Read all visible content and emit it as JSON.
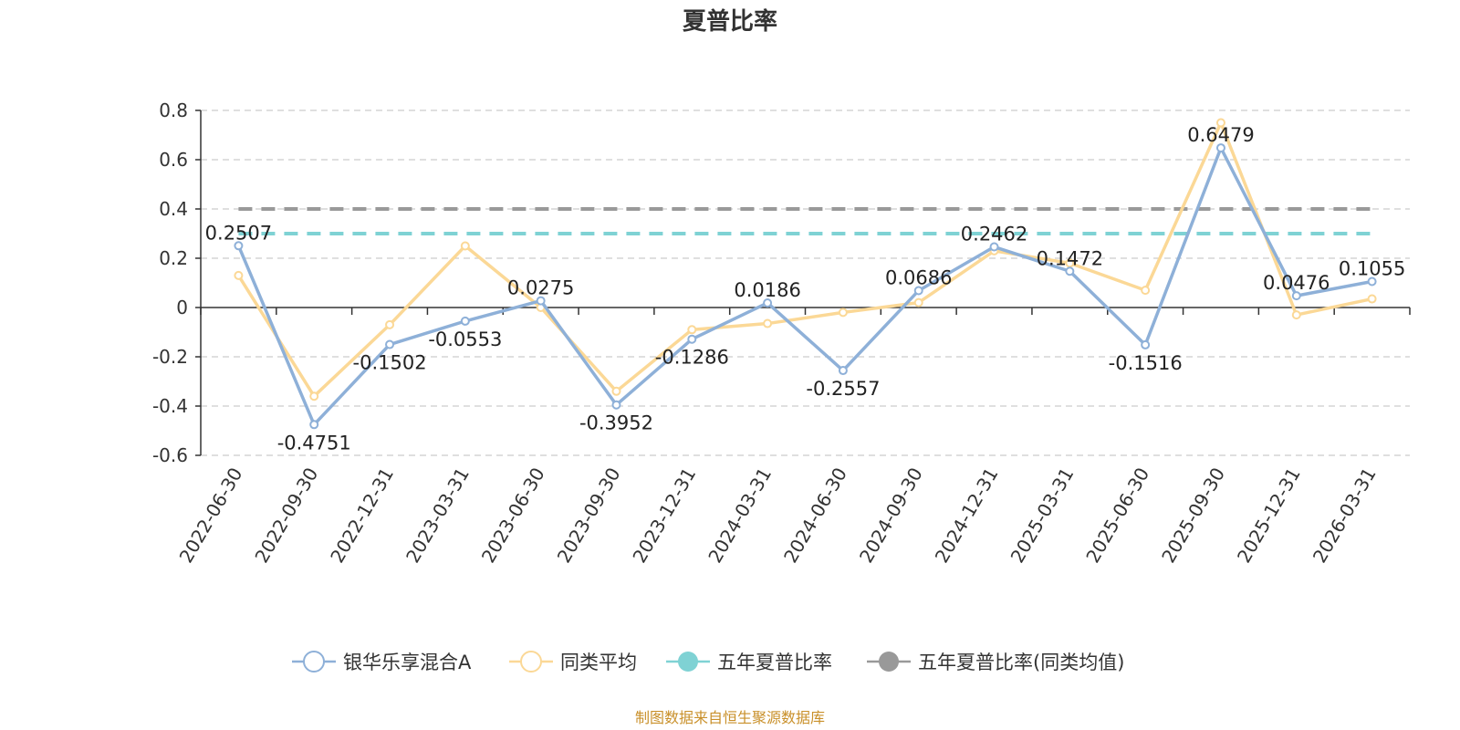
{
  "chart_data": {
    "type": "line",
    "title": "夏普比率",
    "source": "制图数据来自恒生聚源数据库",
    "categories": [
      "2022-06-30",
      "2022-09-30",
      "2022-12-31",
      "2023-03-31",
      "2023-06-30",
      "2023-09-30",
      "2023-12-31",
      "2024-03-31",
      "2024-06-30",
      "2024-09-30",
      "2024-12-31",
      "2025-03-31",
      "2025-06-30",
      "2025-09-30",
      "2025-12-31",
      "2026-03-31"
    ],
    "ylim": [
      -0.6,
      0.8
    ],
    "yticks": [
      0.8,
      0.6,
      0.4,
      0.2,
      0,
      -0.2,
      -0.4,
      -0.6
    ],
    "ytick_labels": [
      "0.8",
      "0.6",
      "0.4",
      "0.2",
      "0",
      "-0.2",
      "-0.4",
      "-0.6"
    ],
    "grid": true,
    "legend_position": "bottom",
    "series": [
      {
        "name": "银华乐享混合A",
        "color": "#8eb0d8",
        "values": [
          0.2507,
          -0.4751,
          -0.1502,
          -0.0553,
          0.0275,
          -0.3952,
          -0.1286,
          0.0186,
          -0.2557,
          0.0686,
          0.2462,
          0.1472,
          -0.1516,
          0.6479,
          0.0476,
          0.1055
        ],
        "labels": [
          "0.2507",
          "-0.4751",
          "-0.1502",
          "-0.0553",
          "0.0275",
          "-0.3952",
          "-0.1286",
          "0.0186",
          "-0.2557",
          "0.0686",
          "0.2462",
          "0.1472",
          "-0.1516",
          "0.6479",
          "0.0476",
          "0.1055"
        ]
      },
      {
        "name": "同类平均",
        "color": "#fbd896",
        "values": [
          0.13,
          -0.36,
          -0.07,
          0.25,
          0.0,
          -0.34,
          -0.09,
          -0.065,
          -0.02,
          0.02,
          0.23,
          0.18,
          0.07,
          0.75,
          -0.03,
          0.035
        ]
      },
      {
        "name": "五年夏普比率",
        "color": "#7fd2d4",
        "values": [
          0.3,
          0.3,
          0.3,
          0.3,
          0.3,
          0.3,
          0.3,
          0.3,
          0.3,
          0.3,
          0.3,
          0.3,
          0.3,
          0.3,
          0.3,
          0.3
        ]
      },
      {
        "name": "五年夏普比率(同类均值)",
        "color": "#999999",
        "values": [
          0.4,
          0.4,
          0.4,
          0.4,
          0.4,
          0.4,
          0.4,
          0.4,
          0.4,
          0.4,
          0.4,
          0.4,
          0.4,
          0.4,
          0.4,
          0.4
        ]
      }
    ]
  }
}
